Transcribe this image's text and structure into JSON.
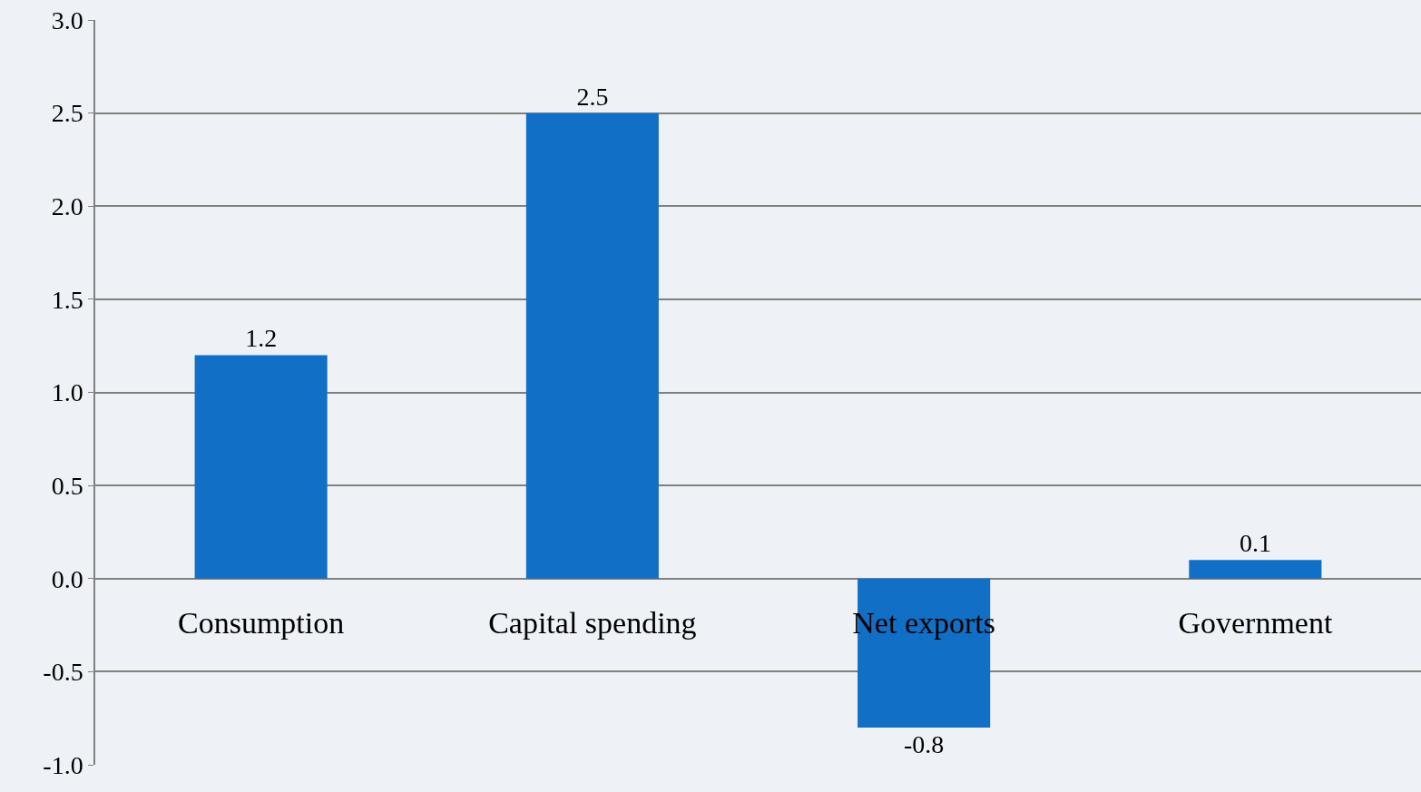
{
  "chart_data": {
    "type": "bar",
    "categories": [
      "Consumption",
      "Capital spending",
      "Net exports",
      "Government"
    ],
    "values": [
      1.2,
      2.5,
      -0.8,
      0.1
    ],
    "color": "#1170c5",
    "data_labels": true,
    "ylim": [
      -1.0,
      3.0
    ],
    "yticks": [
      {
        "value": -1.0,
        "label": "-1.0"
      },
      {
        "value": -0.5,
        "label": "-0.5"
      },
      {
        "value": 0,
        "label": "0.0"
      },
      {
        "value": 0.5,
        "label": "0.5"
      },
      {
        "value": 1.0,
        "label": "1.0"
      },
      {
        "value": 1.5,
        "label": "1.5"
      },
      {
        "value": 2.0,
        "label": "2.0"
      },
      {
        "value": 2.5,
        "label": "2.5"
      },
      {
        "value": 3.0,
        "label": "3.0"
      }
    ],
    "grid": "y"
  }
}
